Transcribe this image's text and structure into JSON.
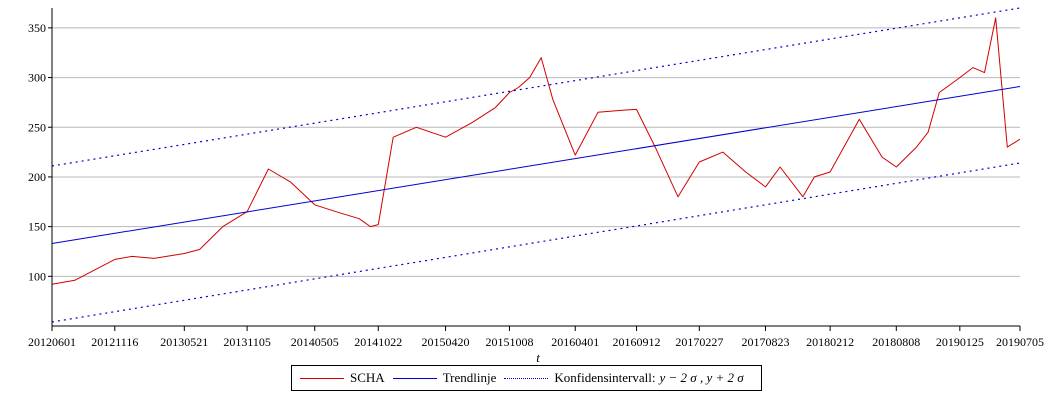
{
  "chart_data": {
    "type": "line",
    "title": "",
    "xlabel": "t",
    "ylabel": "",
    "ylim": [
      50,
      370
    ],
    "grid": "horizontal",
    "legend_position": "bottom",
    "x_ticks": [
      "20120601",
      "20121116",
      "20130521",
      "20131105",
      "20140505",
      "20141022",
      "20150420",
      "20151008",
      "20160401",
      "20160912",
      "20170227",
      "20170823",
      "20180212",
      "20180808",
      "20190125",
      "20190705"
    ],
    "y_ticks": [
      100,
      150,
      200,
      250,
      300,
      350
    ],
    "series": [
      {
        "name": "SCHA",
        "color": "#d40000",
        "style": "solid",
        "x": [
          "20120601",
          "20120801",
          "20121001",
          "20121116",
          "20130101",
          "20130301",
          "20130521",
          "20130701",
          "20130901",
          "20131105",
          "20140101",
          "20140301",
          "20140505",
          "20140701",
          "20140901",
          "20141001",
          "20141022",
          "20141201",
          "20150201",
          "20150420",
          "20150701",
          "20150901",
          "20151008",
          "20151101",
          "20151201",
          "20160101",
          "20160201",
          "20160401",
          "20160601",
          "20160801",
          "20160912",
          "20161101",
          "20170101",
          "20170227",
          "20170501",
          "20170701",
          "20170823",
          "20171001",
          "20171201",
          "20180101",
          "20180212",
          "20180501",
          "20180701",
          "20180808",
          "20181001",
          "20181101",
          "20181201",
          "20190125",
          "20190301",
          "20190401",
          "20190501",
          "20190601",
          "20190705"
        ],
        "y": [
          92,
          96,
          108,
          117,
          120,
          118,
          123,
          127,
          150,
          165,
          208,
          195,
          172,
          165,
          158,
          150,
          152,
          240,
          250,
          240,
          255,
          270,
          285,
          290,
          300,
          320,
          278,
          222,
          265,
          267,
          268,
          230,
          180,
          215,
          225,
          205,
          190,
          210,
          180,
          200,
          205,
          258,
          220,
          210,
          230,
          245,
          285,
          300,
          310,
          305,
          360,
          230,
          238
        ]
      },
      {
        "name": "Trendlinje",
        "color": "#0000cc",
        "style": "solid",
        "x": [
          "20120601",
          "20190705"
        ],
        "y": [
          133,
          291
        ]
      },
      {
        "name": "Konfidensintervall: y − 2σ, y + 2σ (upper)",
        "color": "#0000cc",
        "style": "dotted",
        "x": [
          "20120601",
          "20190705"
        ],
        "y": [
          211,
          370
        ]
      },
      {
        "name": "Konfidensintervall: y − 2σ, y + 2σ (lower)",
        "color": "#0000cc",
        "style": "dotted",
        "x": [
          "20120601",
          "20190705"
        ],
        "y": [
          54,
          214
        ]
      }
    ]
  },
  "legend": {
    "scha": "SCHA",
    "trend": "Trendlinje",
    "conf_label": "Konfidensintervall:",
    "conf_math": "y − 2 σ , y + 2 σ"
  }
}
